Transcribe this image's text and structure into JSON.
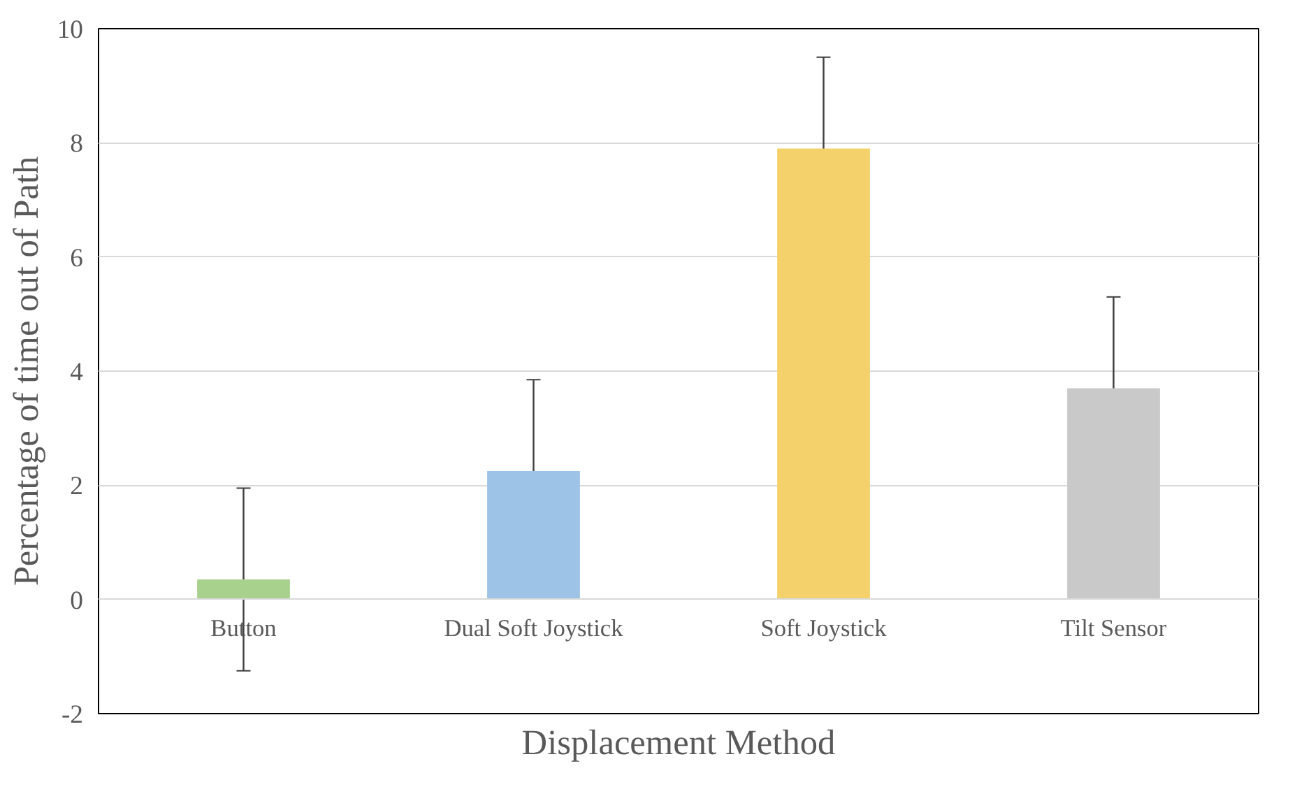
{
  "chart_data": {
    "type": "bar",
    "xlabel": "Displacement Method",
    "ylabel": "Percentage of time out of Path",
    "categories": [
      "Button",
      "Dual Soft Joystick",
      "Soft Joystick",
      "Tilt Sensor"
    ],
    "values": [
      0.35,
      2.25,
      7.9,
      3.7
    ],
    "colors": [
      "#a9d18e",
      "#9dc3e6",
      "#f4d16a",
      "#c9c9c9"
    ],
    "errors": [
      1.6,
      1.6,
      1.6,
      1.6
    ],
    "ylim": [
      -2,
      10
    ],
    "yticks": [
      -2,
      0,
      2,
      4,
      6,
      8,
      10
    ],
    "grid": "y"
  }
}
